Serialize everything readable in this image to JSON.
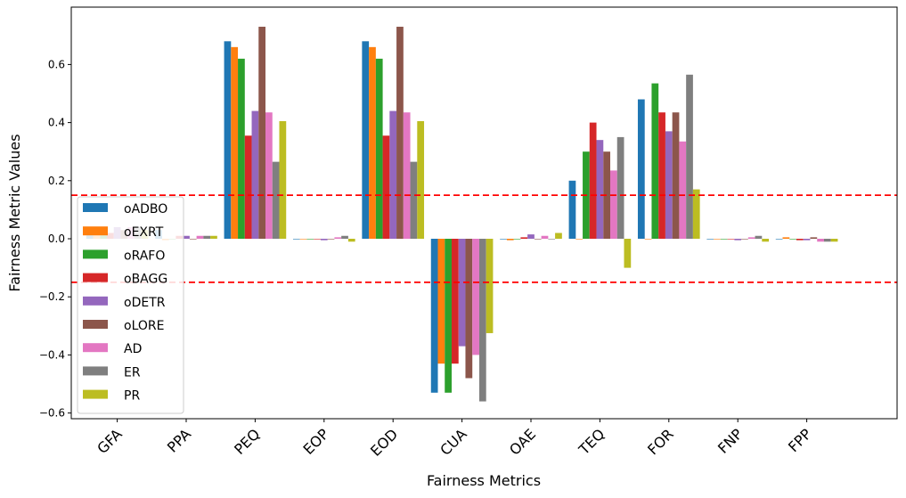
{
  "chart_data": {
    "type": "bar",
    "title": "",
    "xlabel": "Fairness Metrics",
    "ylabel": "Fairness Metric Values",
    "ylim": [
      -0.62,
      0.79
    ],
    "yticks": [
      -0.6,
      -0.4,
      -0.2,
      0.0,
      0.2,
      0.4,
      0.6
    ],
    "ytick_labels": [
      "−0.6",
      "−0.4",
      "−0.2",
      "0.0",
      "0.2",
      "0.4",
      "0.6"
    ],
    "grid": false,
    "legend_position": "lower-left",
    "reference_lines": [
      0.15,
      -0.15
    ],
    "reference_line_color": "#ff0000",
    "categories": [
      "GFA",
      "PPA",
      "PEQ",
      "EOP",
      "EOD",
      "CUA",
      "OAE",
      "TEQ",
      "FOR",
      "FNP",
      "FPP"
    ],
    "series": [
      {
        "name": "oADBO",
        "color": "#1f77b4",
        "values": [
          0.04,
          0.03,
          0.68,
          0.0,
          0.68,
          -0.53,
          0.0,
          0.2,
          0.48,
          0.0,
          0.0
        ]
      },
      {
        "name": "oEXRT",
        "color": "#ff7f0e",
        "values": [
          0.04,
          -0.005,
          0.66,
          0.0,
          0.66,
          -0.43,
          -0.005,
          0.0,
          0.0,
          0.0,
          0.005
        ]
      },
      {
        "name": "oRAFO",
        "color": "#2ca02c",
        "values": [
          0.03,
          0.0,
          0.62,
          0.0,
          0.62,
          -0.53,
          0.0,
          0.3,
          0.535,
          0.0,
          0.0
        ]
      },
      {
        "name": "oBAGG",
        "color": "#d62728",
        "values": [
          0.02,
          0.01,
          0.355,
          0.0,
          0.355,
          -0.43,
          0.005,
          0.4,
          0.435,
          0.0,
          -0.005
        ]
      },
      {
        "name": "oDETR",
        "color": "#9467bd",
        "values": [
          0.04,
          0.01,
          0.44,
          -0.005,
          0.44,
          -0.37,
          0.015,
          0.34,
          0.37,
          -0.005,
          -0.005
        ]
      },
      {
        "name": "oLORE",
        "color": "#8c564b",
        "values": [
          0.03,
          0.0,
          0.73,
          0.0,
          0.73,
          -0.48,
          0.0,
          0.3,
          0.435,
          0.0,
          0.005
        ]
      },
      {
        "name": "AD",
        "color": "#e377c2",
        "values": [
          0.04,
          0.01,
          0.435,
          0.005,
          0.435,
          -0.4,
          0.01,
          0.235,
          0.335,
          0.005,
          -0.01
        ]
      },
      {
        "name": "ER",
        "color": "#7f7f7f",
        "values": [
          0.04,
          0.01,
          0.265,
          0.01,
          0.265,
          -0.56,
          0.0,
          0.35,
          0.565,
          0.01,
          -0.01
        ]
      },
      {
        "name": "PR",
        "color": "#bcbd22",
        "values": [
          0.03,
          0.01,
          0.405,
          -0.01,
          0.405,
          -0.325,
          0.02,
          -0.1,
          0.17,
          -0.01,
          -0.01
        ]
      }
    ]
  }
}
